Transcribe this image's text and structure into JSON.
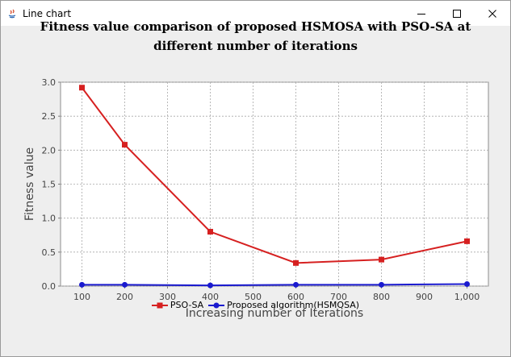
{
  "window": {
    "title": "Line chart",
    "controls": {
      "minimize_icon": "minimize-icon",
      "maximize_icon": "maximize-icon",
      "close_icon": "close-icon"
    }
  },
  "chart_data": {
    "type": "line",
    "title": "Fitness value comparison of proposed HSMOSA with PSO-SA at different number of iterations",
    "xlabel": "Increasing number of Iterations",
    "ylabel": "Fitness value",
    "xlim": [
      50,
      1050
    ],
    "ylim": [
      0,
      3.0
    ],
    "x_ticks": [
      "100",
      "200",
      "300",
      "400",
      "500",
      "600",
      "700",
      "800",
      "900",
      "1,000"
    ],
    "y_ticks": [
      "0.0",
      "0.5",
      "1.0",
      "1.5",
      "2.0",
      "2.5",
      "3.0"
    ],
    "grid": true,
    "legend_position": "bottom",
    "x": [
      100,
      200,
      400,
      600,
      800,
      1000
    ],
    "series": [
      {
        "name": "PSO-SA",
        "color": "#d62020",
        "marker": "square",
        "values": [
          2.92,
          2.08,
          0.8,
          0.34,
          0.39,
          0.66
        ]
      },
      {
        "name": "Proposed algorithm(HSMOSA)",
        "color": "#1a1acf",
        "marker": "circle",
        "values": [
          0.02,
          0.02,
          0.01,
          0.02,
          0.02,
          0.03
        ]
      }
    ]
  }
}
